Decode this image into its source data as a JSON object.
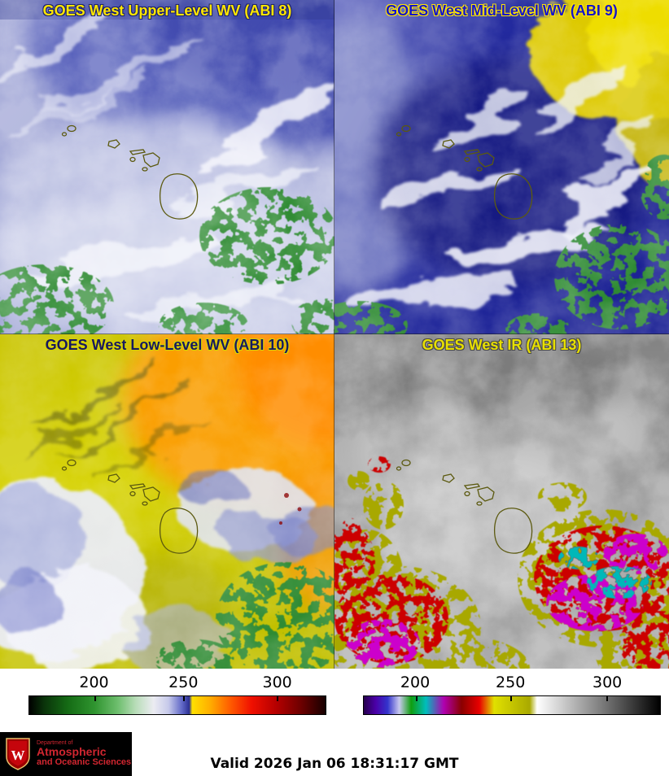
{
  "panels": [
    {
      "title": "GOES West Upper-Level WV (ABI 8)",
      "color": "#ffe600",
      "halo": "#1b2170"
    },
    {
      "title": "GOES West Mid-Level WV (ABI 9)",
      "color": "#1414cc",
      "halo": "#ffe600"
    },
    {
      "title": "GOES West Low-Level WV (ABI 10)",
      "color": "#181860",
      "halo": "#d8d400"
    },
    {
      "title": "GOES West IR (ABI 13)",
      "color": "#e8e000",
      "halo": "#4a4a4a"
    }
  ],
  "colorbars": [
    {
      "name": "water-vapor-scale",
      "ticks": [
        {
          "label": "200",
          "pos": 22
        },
        {
          "label": "250",
          "pos": 52
        },
        {
          "label": "300",
          "pos": 83.5
        }
      ],
      "stops": [
        [
          "#000000",
          0
        ],
        [
          "#0a330a",
          0.05
        ],
        [
          "#156b15",
          0.13
        ],
        [
          "#2f942f",
          0.22
        ],
        [
          "#6fbf6f",
          0.3
        ],
        [
          "#b9ddb9",
          0.36
        ],
        [
          "#ececf2",
          0.42
        ],
        [
          "#c6c9ea",
          0.47
        ],
        [
          "#6169c8",
          0.515
        ],
        [
          "#2b2f93",
          0.54
        ],
        [
          "#ffe000",
          0.55
        ],
        [
          "#ffae00",
          0.61
        ],
        [
          "#ff5a00",
          0.68
        ],
        [
          "#f01000",
          0.75
        ],
        [
          "#b80000",
          0.83
        ],
        [
          "#6a0000",
          0.92
        ],
        [
          "#160000",
          1
        ]
      ]
    },
    {
      "name": "infrared-scale",
      "ticks": [
        {
          "label": "200",
          "pos": 17.5
        },
        {
          "label": "250",
          "pos": 49.5
        },
        {
          "label": "300",
          "pos": 82
        }
      ],
      "stops": [
        [
          "#26004d",
          0
        ],
        [
          "#4b00a8",
          0.04
        ],
        [
          "#3333cc",
          0.08
        ],
        [
          "#c9c9ee",
          0.12
        ],
        [
          "#0f9e0f",
          0.16
        ],
        [
          "#00bdbd",
          0.21
        ],
        [
          "#b000b0",
          0.27
        ],
        [
          "#8a0000",
          0.33
        ],
        [
          "#e80000",
          0.39
        ],
        [
          "#e0e000",
          0.44
        ],
        [
          "#a9a900",
          0.56
        ],
        [
          "#ffffff",
          0.585
        ],
        [
          "#7e7e7e",
          0.8
        ],
        [
          "#000000",
          1
        ]
      ]
    }
  ],
  "footer": {
    "valid_text": "Valid 2026 Jan 06 18:31:17 GMT",
    "logo": {
      "crest_letter": "W",
      "dept": "Department of",
      "line1": "Atmospheric",
      "line2": "and Oceanic Sciences",
      "text_color": "#d22630",
      "bg": "#000000"
    }
  }
}
